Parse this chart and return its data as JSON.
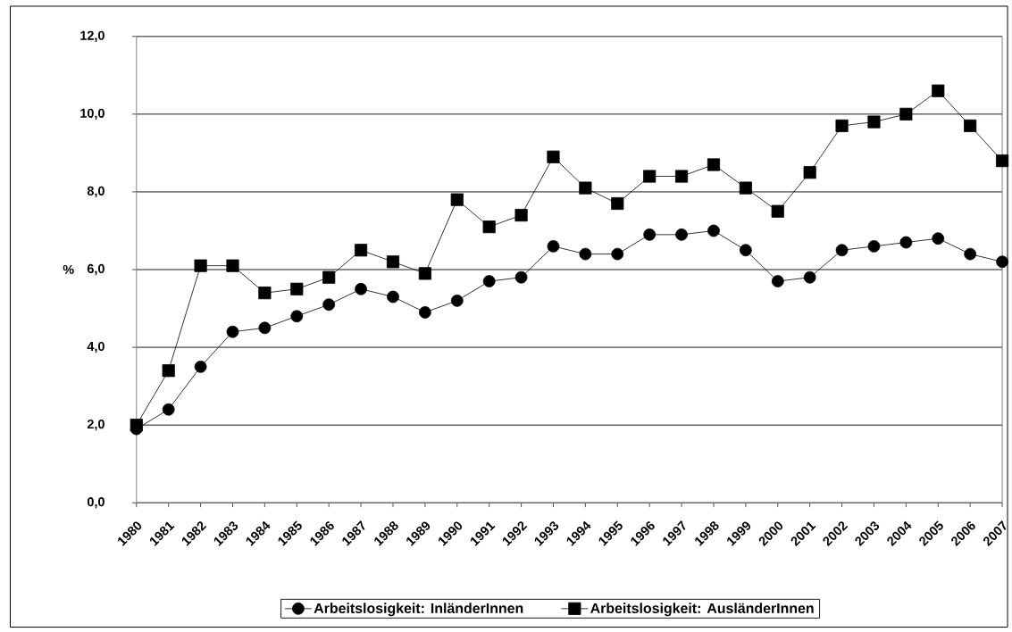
{
  "chart_data": {
    "type": "line",
    "categories": [
      "1980",
      "1981",
      "1982",
      "1983",
      "1984",
      "1985",
      "1986",
      "1987",
      "1988",
      "1989",
      "1990",
      "1991",
      "1992",
      "1993",
      "1994",
      "1995",
      "1996",
      "1997",
      "1998",
      "1999",
      "2000",
      "2001",
      "2002",
      "2003",
      "2004",
      "2005",
      "2006",
      "2007"
    ],
    "ylabel": "%",
    "ylim": [
      0,
      12
    ],
    "yticks": [
      {
        "value": 0,
        "label": "0,0"
      },
      {
        "value": 2,
        "label": "2,0"
      },
      {
        "value": 4,
        "label": "4,0"
      },
      {
        "value": 6,
        "label": "6,0"
      },
      {
        "value": 8,
        "label": "8,0"
      },
      {
        "value": 10,
        "label": "10,0"
      },
      {
        "value": 12,
        "label": "12,0"
      }
    ],
    "grid": "y",
    "legend": "bottom",
    "line_style": "solid",
    "series": [
      {
        "name": "Arbeitslosigkeit: InländerInnen",
        "color": "#000000",
        "marker": "circle",
        "values": [
          1.9,
          2.4,
          3.5,
          4.4,
          4.5,
          4.8,
          5.1,
          5.5,
          5.3,
          4.9,
          5.2,
          5.7,
          5.8,
          6.6,
          6.4,
          6.4,
          6.9,
          6.9,
          7.0,
          6.5,
          5.7,
          5.8,
          6.5,
          6.6,
          6.7,
          6.8,
          6.4,
          6.2
        ]
      },
      {
        "name": "Arbeitslosigkeit: AusländerInnen",
        "color": "#000000",
        "marker": "square",
        "values": [
          2.0,
          3.4,
          6.1,
          6.1,
          5.4,
          5.5,
          5.8,
          6.5,
          6.2,
          5.9,
          7.8,
          7.1,
          7.4,
          8.9,
          8.1,
          7.7,
          8.4,
          8.4,
          8.7,
          8.1,
          7.5,
          8.5,
          9.7,
          9.8,
          10.0,
          10.6,
          9.7,
          8.8
        ]
      }
    ]
  }
}
